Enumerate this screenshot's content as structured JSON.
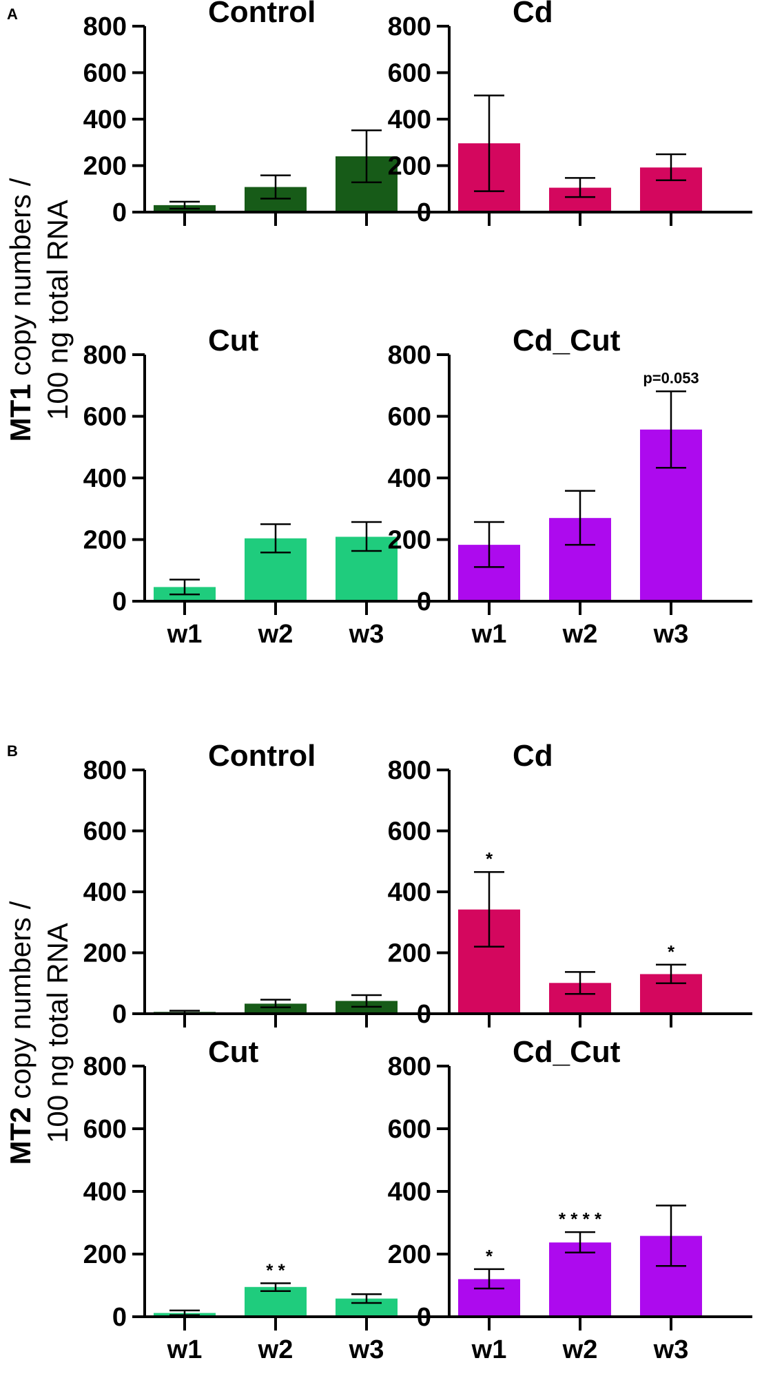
{
  "panels": [
    {
      "letter": "A",
      "ylabel_gene": "MT1",
      "ylabel_line1_rest": " copy numbers /",
      "ylabel_line2": "100 ng total RNA"
    },
    {
      "letter": "B",
      "ylabel_gene": "MT2",
      "ylabel_line1_rest": " copy numbers /",
      "ylabel_line2": "100 ng total RNA"
    }
  ],
  "colors": {
    "Control": "#175b18",
    "Cd": "#d4075e",
    "Cut": "#1fcc7d",
    "Cd_Cut": "#ad0aee"
  },
  "chart_data": [
    {
      "panel": "A",
      "type": "bar",
      "title": "Control",
      "categories": [
        "w1",
        "w2",
        "w3"
      ],
      "show_xlabels": false,
      "ylim": [
        0,
        800
      ],
      "yticks": [
        0,
        200,
        400,
        600,
        800
      ],
      "values": [
        30,
        108,
        240
      ],
      "err_low": [
        15,
        58,
        128
      ],
      "err_high": [
        45,
        158,
        352
      ],
      "annotations": [
        "",
        "",
        ""
      ],
      "note": ""
    },
    {
      "panel": "A",
      "type": "bar",
      "title": "Cd",
      "categories": [
        "w1",
        "w2",
        "w3"
      ],
      "show_xlabels": false,
      "ylim": [
        0,
        800
      ],
      "yticks": [
        0,
        200,
        400,
        600,
        800
      ],
      "values": [
        296,
        105,
        192
      ],
      "err_low": [
        90,
        65,
        137
      ],
      "err_high": [
        502,
        147,
        249
      ],
      "annotations": [
        "",
        "",
        ""
      ],
      "note": ""
    },
    {
      "panel": "A",
      "type": "bar",
      "title": "Cut",
      "categories": [
        "w1",
        "w2",
        "w3"
      ],
      "show_xlabels": true,
      "ylim": [
        0,
        800
      ],
      "yticks": [
        0,
        200,
        400,
        600,
        800
      ],
      "values": [
        46,
        204,
        209
      ],
      "err_low": [
        22,
        158,
        163
      ],
      "err_high": [
        70,
        250,
        257
      ],
      "annotations": [
        "",
        "",
        ""
      ],
      "note": ""
    },
    {
      "panel": "A",
      "type": "bar",
      "title": "Cd_Cut",
      "categories": [
        "w1",
        "w2",
        "w3"
      ],
      "show_xlabels": true,
      "ylim": [
        0,
        800
      ],
      "yticks": [
        0,
        200,
        400,
        600,
        800
      ],
      "values": [
        183,
        270,
        557
      ],
      "err_low": [
        111,
        183,
        433
      ],
      "err_high": [
        257,
        358,
        681
      ],
      "annotations": [
        "",
        "",
        ""
      ],
      "note": "p=0.053"
    },
    {
      "panel": "B",
      "type": "bar",
      "title": "Control",
      "categories": [
        "w1",
        "w2",
        "w3"
      ],
      "show_xlabels": false,
      "ylim": [
        0,
        800
      ],
      "yticks": [
        0,
        200,
        400,
        600,
        800
      ],
      "values": [
        6,
        33,
        42
      ],
      "err_low": [
        2,
        21,
        23
      ],
      "err_high": [
        10,
        46,
        61
      ],
      "annotations": [
        "",
        "",
        ""
      ],
      "note": ""
    },
    {
      "panel": "B",
      "type": "bar",
      "title": "Cd",
      "categories": [
        "w1",
        "w2",
        "w3"
      ],
      "show_xlabels": false,
      "ylim": [
        0,
        800
      ],
      "yticks": [
        0,
        200,
        400,
        600,
        800
      ],
      "values": [
        342,
        101,
        130
      ],
      "err_low": [
        220,
        65,
        100
      ],
      "err_high": [
        465,
        137,
        161
      ],
      "annotations": [
        "*",
        "",
        "*"
      ],
      "note": ""
    },
    {
      "panel": "B",
      "type": "bar",
      "title": "Cut",
      "categories": [
        "w1",
        "w2",
        "w3"
      ],
      "show_xlabels": true,
      "ylim": [
        0,
        800
      ],
      "yticks": [
        0,
        200,
        400,
        600,
        800
      ],
      "values": [
        12,
        95,
        58
      ],
      "err_low": [
        5,
        82,
        44
      ],
      "err_high": [
        20,
        107,
        72
      ],
      "annotations": [
        "",
        "* *",
        ""
      ],
      "note": ""
    },
    {
      "panel": "B",
      "type": "bar",
      "title": "Cd_Cut",
      "categories": [
        "w1",
        "w2",
        "w3"
      ],
      "show_xlabels": true,
      "ylim": [
        0,
        800
      ],
      "yticks": [
        0,
        200,
        400,
        600,
        800
      ],
      "values": [
        120,
        237,
        258
      ],
      "err_low": [
        90,
        205,
        162
      ],
      "err_high": [
        152,
        270,
        355
      ],
      "annotations": [
        "*",
        "* * * *",
        ""
      ],
      "note": ""
    }
  ]
}
